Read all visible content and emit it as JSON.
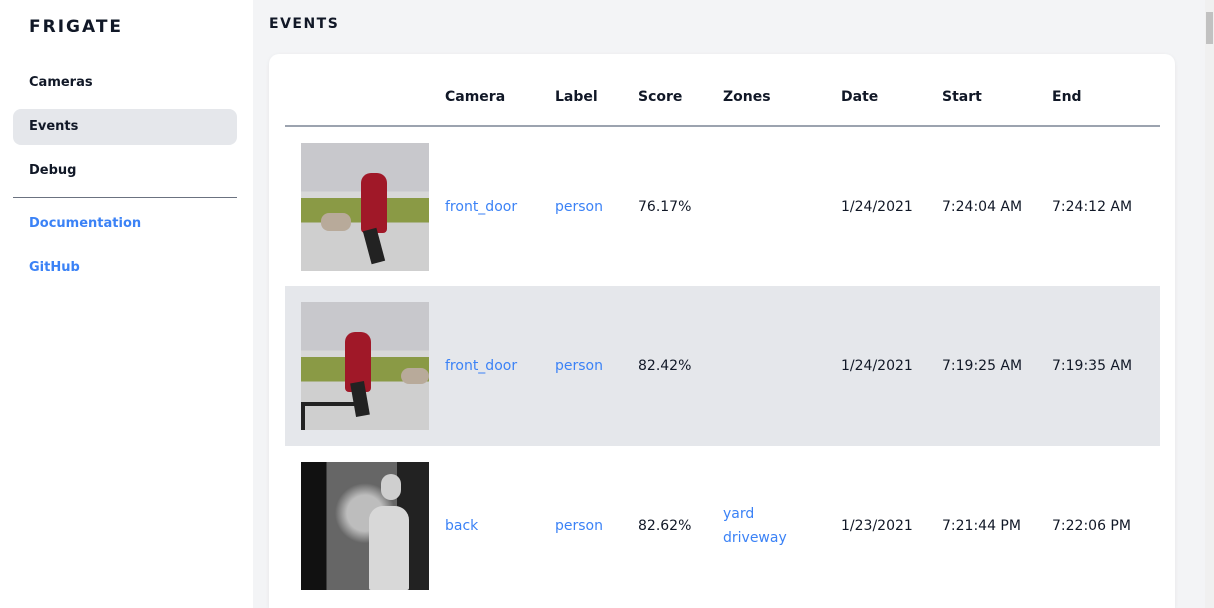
{
  "sidebar": {
    "brand": "FRIGATE",
    "items": [
      {
        "label": "Cameras"
      },
      {
        "label": "Events",
        "active": true
      },
      {
        "label": "Debug"
      }
    ],
    "links": [
      {
        "label": "Documentation"
      },
      {
        "label": "GitHub"
      }
    ]
  },
  "main": {
    "title": "EVENTS",
    "columns": [
      "",
      "Camera",
      "Label",
      "Score",
      "Zones",
      "Date",
      "Start",
      "End"
    ],
    "rows": [
      {
        "thumbnail": "person walking dog (daytime)",
        "camera": "front_door",
        "label": "person",
        "score": "76.17%",
        "zones": [
          "",
          ""
        ],
        "date": "1/24/2021",
        "start": "7:24:04 AM",
        "end": "7:24:12 AM"
      },
      {
        "thumbnail": "person walking dog (daytime)",
        "camera": "front_door",
        "label": "person",
        "score": "82.42%",
        "zones": [
          "",
          ""
        ],
        "date": "1/24/2021",
        "start": "7:19:25 AM",
        "end": "7:19:35 AM"
      },
      {
        "thumbnail": "person at night (infrared)",
        "camera": "back",
        "label": "person",
        "score": "82.62%",
        "zones": [
          "yard",
          "driveway"
        ],
        "date": "1/23/2021",
        "start": "7:21:44 PM",
        "end": "7:22:06 PM"
      }
    ]
  },
  "colors": {
    "accent": "#3b82f6",
    "active_bg": "#e5e7eb",
    "page_bg": "#f3f4f6"
  }
}
